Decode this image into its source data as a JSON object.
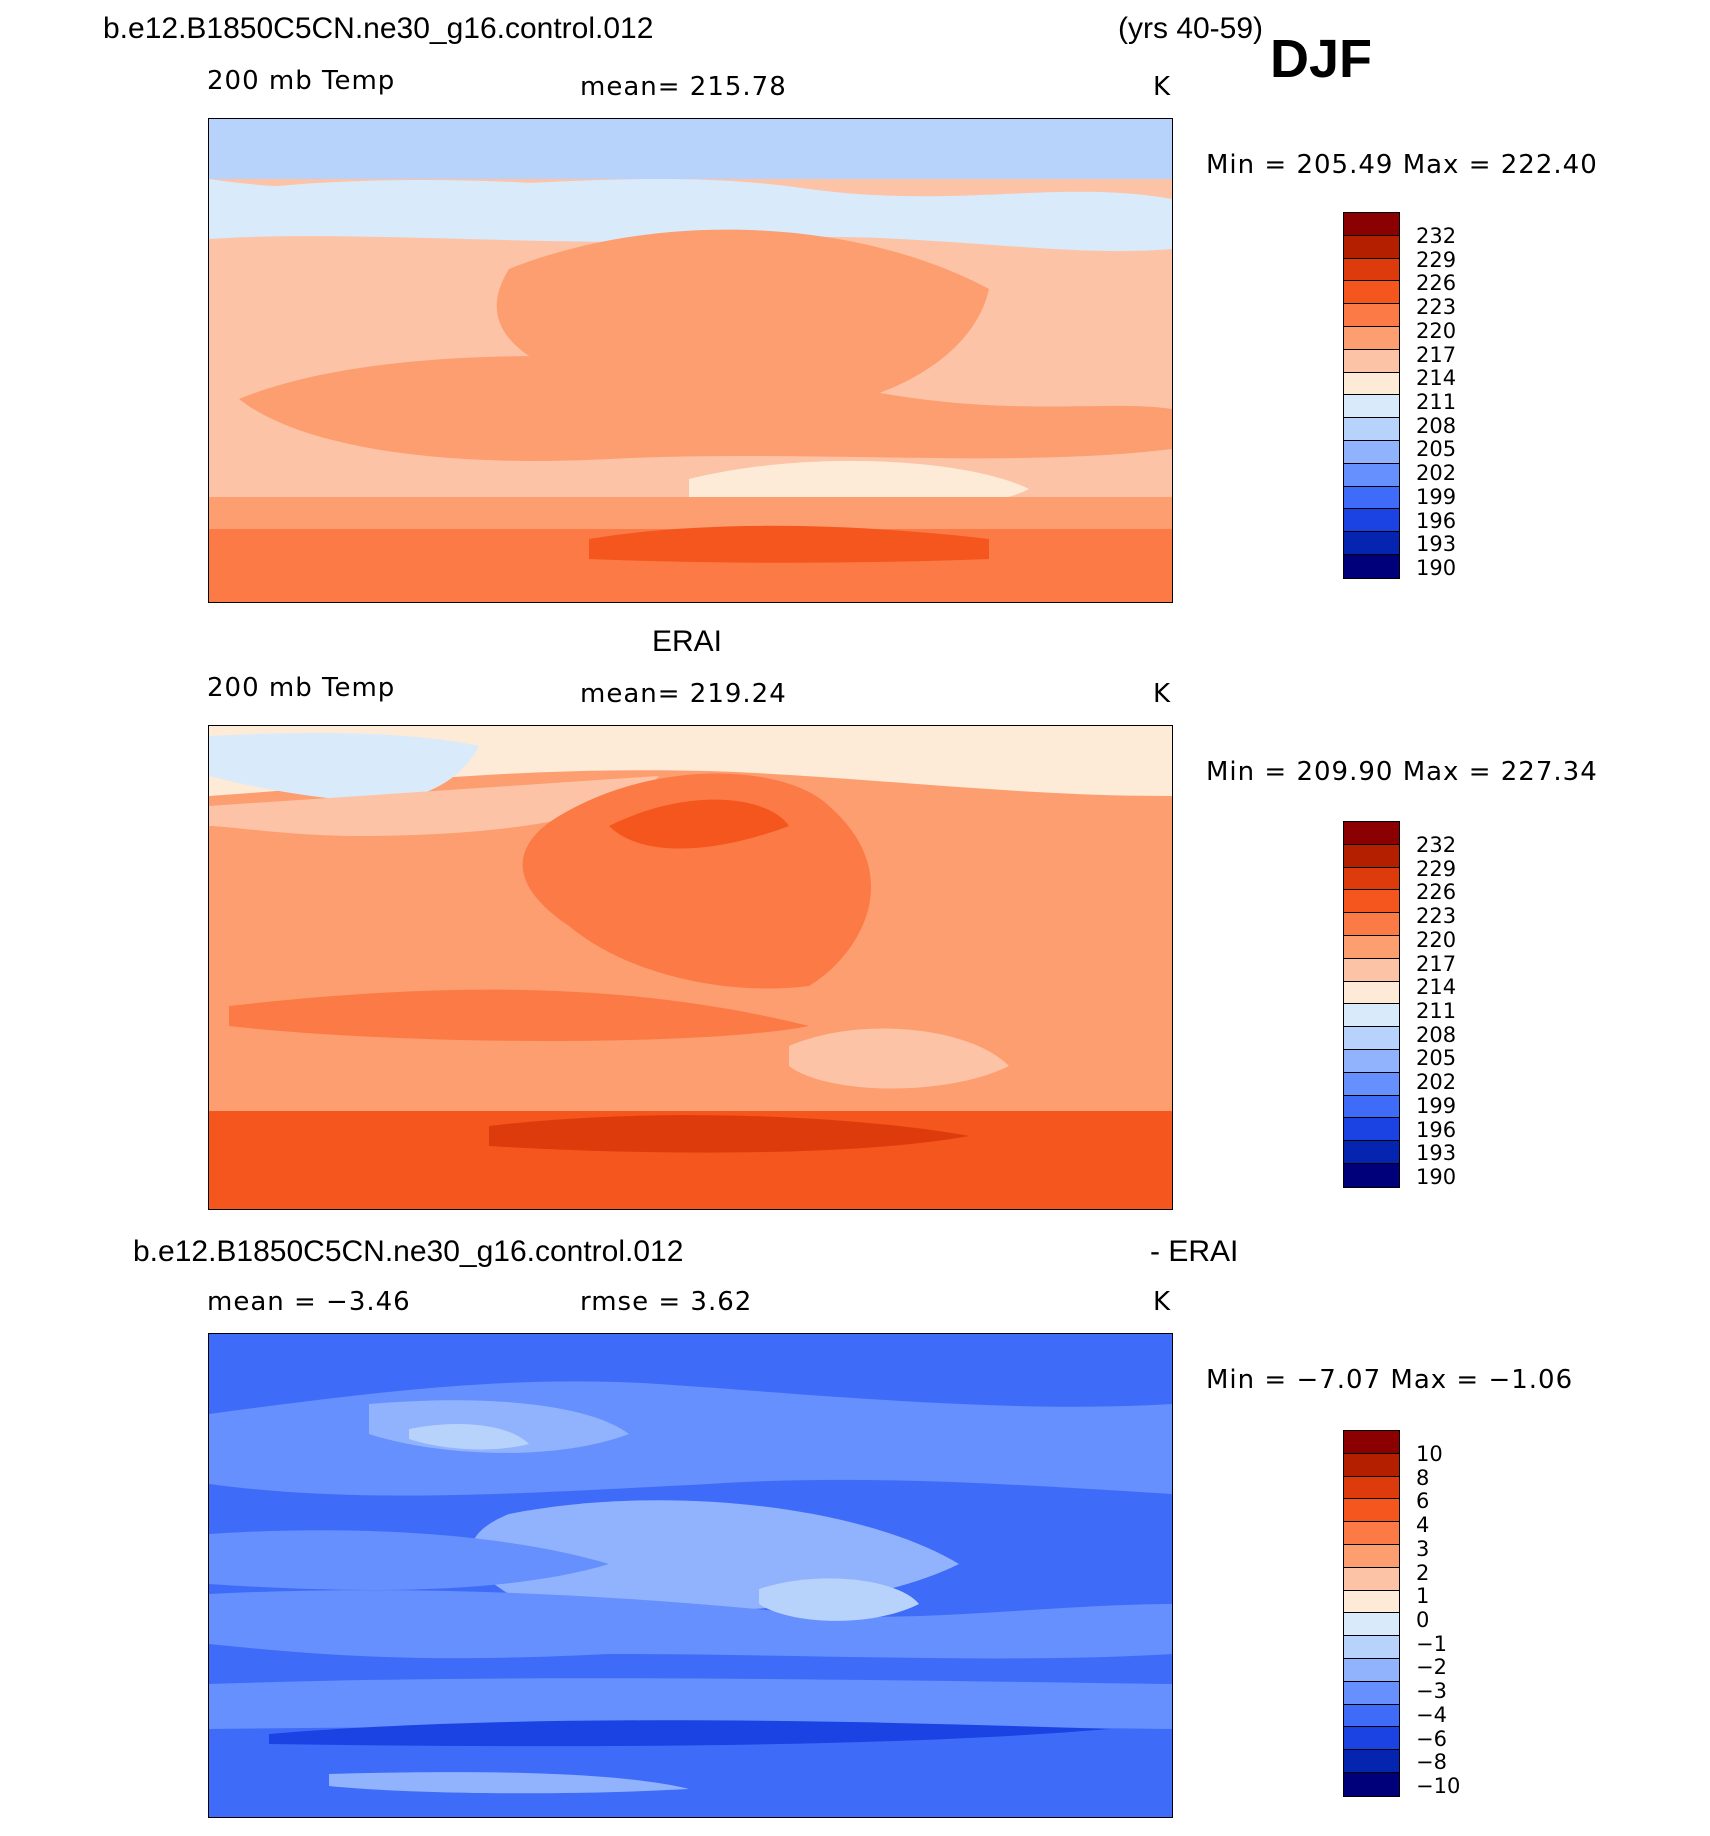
{
  "header": {
    "case_name": "b.e12.B1850C5CN.ne30_g16.control.012",
    "years": "(yrs 40-59)",
    "season": "DJF"
  },
  "panels": [
    {
      "id": "model",
      "title": "",
      "variable": "200 mb Temp",
      "mean_text": "mean=  215.78",
      "units": "K",
      "minmax": "Min  =  205.49  Max  =  222.40"
    },
    {
      "id": "obs",
      "title": "ERAI",
      "variable": "200 mb Temp",
      "mean_text": "mean=  219.24",
      "units": "K",
      "minmax": "Min  =  209.90  Max  =  227.34"
    },
    {
      "id": "diff",
      "title_left": "b.e12.B1850C5CN.ne30_g16.control.012",
      "title_right": "- ERAI",
      "mean_text": "mean  =   −3.46",
      "rmse_text": "rmse  =     3.62",
      "units": "K",
      "minmax": "Min  =   −7.07  Max  =   −1.06"
    }
  ],
  "colorbars": {
    "abs_ticks": [
      "232",
      "229",
      "226",
      "223",
      "220",
      "217",
      "214",
      "211",
      "208",
      "205",
      "202",
      "199",
      "196",
      "193",
      "190"
    ],
    "diff_ticks": [
      "10",
      "8",
      "6",
      "4",
      "3",
      "2",
      "1",
      "0",
      "−1",
      "−2",
      "−3",
      "−4",
      "−6",
      "−8",
      "−10"
    ],
    "colors": [
      "#8b0000",
      "#b41f00",
      "#de3b0c",
      "#f4561e",
      "#fc7a45",
      "#fd9e70",
      "#fdc3a6",
      "#fdebd8",
      "#d9eafa",
      "#b7d2fb",
      "#91b2fd",
      "#6590fd",
      "#3f6bf9",
      "#1b42e2",
      "#0525b0",
      "#00007a"
    ]
  }
}
